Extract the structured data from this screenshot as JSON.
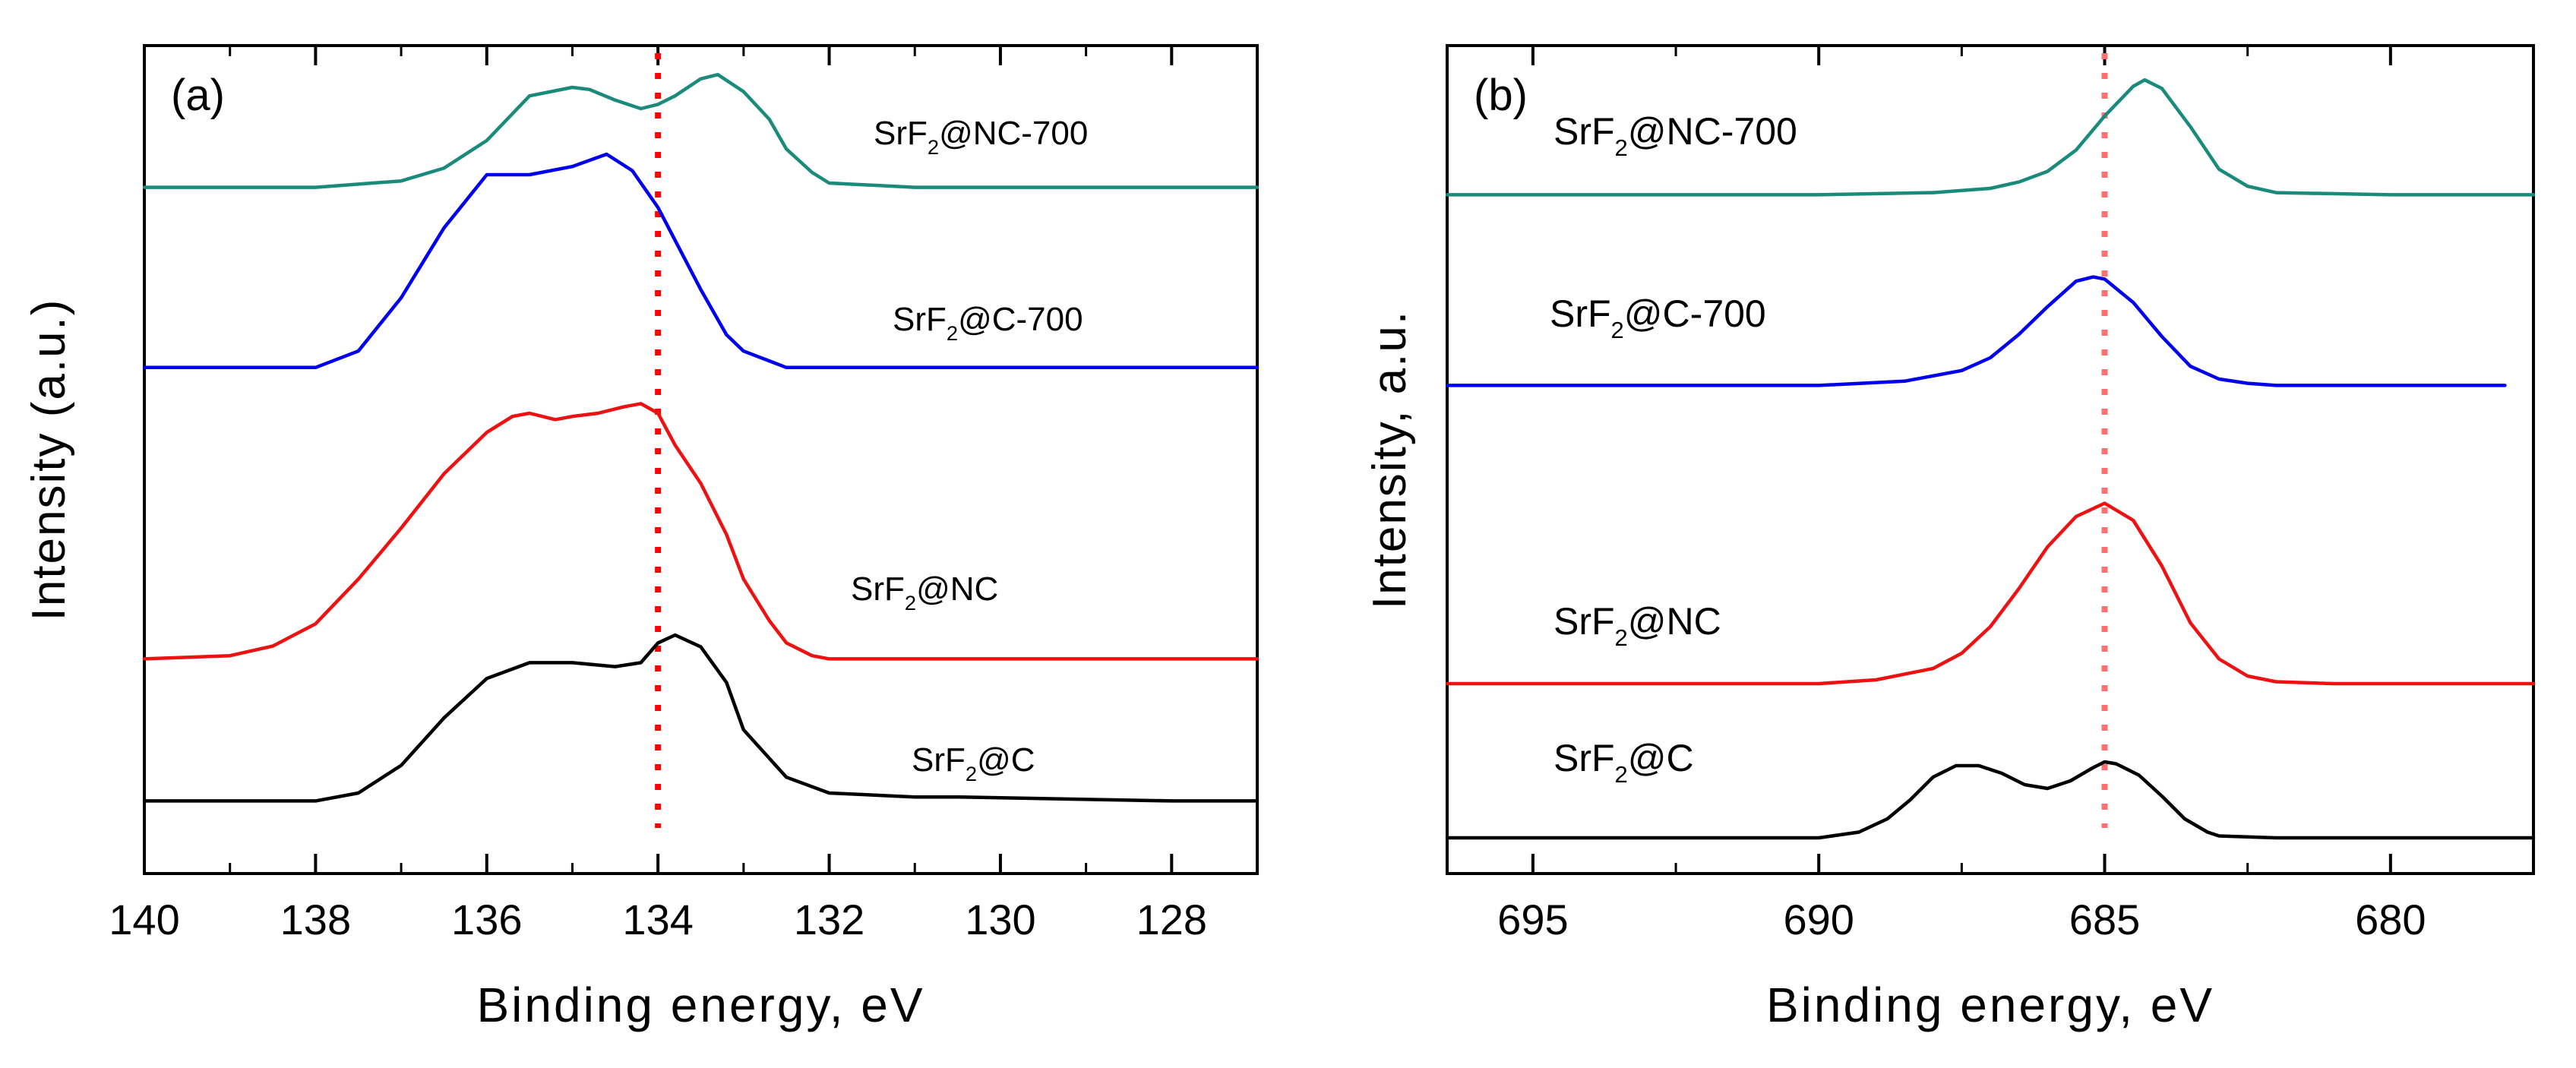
{
  "chart_data": [
    {
      "type": "line",
      "panel_label": "(a)",
      "xlabel": "Binding energy, eV",
      "ylabel": "Intensity (a.u.)",
      "xlim": [
        140,
        127
      ],
      "x_reversed": true,
      "xticks": [
        140,
        138,
        136,
        134,
        132,
        130,
        128
      ],
      "xtick_labels": [
        "140",
        "138",
        "136",
        "134",
        "132",
        "130",
        "128"
      ],
      "y_ticks_visible": false,
      "reference_line": {
        "x": 134.0,
        "style": "dotted",
        "color": "#ff0000"
      },
      "series": [
        {
          "name": "SrF2@NC-700",
          "label_main": "SrF",
          "label_sub": "2",
          "label_rest": "@NC-700",
          "color": "#1a8a7a",
          "x": [
            140,
            138,
            137,
            136.5,
            136,
            135.5,
            135,
            134.8,
            134.5,
            134.2,
            134,
            133.8,
            133.5,
            133.3,
            133,
            132.7,
            132.5,
            132.2,
            132,
            131,
            130,
            128,
            127
          ],
          "y": [
            0.3,
            0.3,
            0.6,
            1.2,
            2.5,
            4.6,
            5.0,
            4.9,
            4.4,
            4.0,
            4.2,
            4.6,
            5.4,
            5.6,
            4.8,
            3.5,
            2.1,
            1.0,
            0.5,
            0.3,
            0.3,
            0.3,
            0.3
          ]
        },
        {
          "name": "SrF2@C-700",
          "label_main": "SrF",
          "label_sub": "2",
          "label_rest": "@C-700",
          "color": "#0000ee",
          "x": [
            140,
            138,
            137.5,
            137,
            136.5,
            136,
            135.5,
            135,
            134.6,
            134.3,
            134,
            133.8,
            133.5,
            133.2,
            133,
            132.5,
            132,
            131,
            128,
            127
          ],
          "y": [
            0.3,
            0.3,
            0.7,
            2.0,
            3.7,
            5.0,
            5.0,
            5.2,
            5.5,
            5.1,
            4.2,
            3.4,
            2.2,
            1.1,
            0.7,
            0.3,
            0.3,
            0.3,
            0.3,
            0.3
          ]
        },
        {
          "name": "SrF2@NC",
          "label_main": "SrF",
          "label_sub": "2",
          "label_rest": "@NC",
          "color": "#ee1111",
          "x": [
            140,
            139,
            138.5,
            138,
            137.5,
            137,
            136.5,
            136,
            135.7,
            135.5,
            135.2,
            135,
            134.7,
            134.4,
            134.2,
            134,
            133.8,
            133.5,
            133.2,
            133,
            132.7,
            132.5,
            132.2,
            132,
            131,
            130,
            128,
            127
          ],
          "y": [
            0.3,
            0.4,
            0.7,
            1.4,
            2.8,
            4.4,
            6.1,
            7.4,
            7.9,
            8.0,
            7.8,
            7.9,
            8.0,
            8.2,
            8.3,
            8.0,
            7.0,
            5.8,
            4.2,
            2.8,
            1.5,
            0.8,
            0.4,
            0.3,
            0.3,
            0.3,
            0.3,
            0.3
          ]
        },
        {
          "name": "SrF2@C",
          "label_main": "SrF",
          "label_sub": "2",
          "label_rest": "@C",
          "color": "#000000",
          "x": [
            140,
            138,
            137.5,
            137,
            136.5,
            136,
            135.5,
            135,
            134.5,
            134.2,
            134,
            133.8,
            133.5,
            133.2,
            133,
            132.5,
            132,
            131,
            130.5,
            128,
            127
          ],
          "y": [
            0.3,
            0.3,
            0.5,
            1.2,
            2.4,
            3.4,
            3.8,
            3.8,
            3.7,
            3.8,
            4.3,
            4.5,
            4.2,
            3.3,
            2.1,
            0.9,
            0.5,
            0.4,
            0.4,
            0.3,
            0.3
          ]
        }
      ]
    },
    {
      "type": "line",
      "panel_label": "(b)",
      "xlabel": "Binding energy, eV",
      "ylabel": "Intensity, a.u.",
      "xlim": [
        696.5,
        677.5
      ],
      "x_reversed": true,
      "xticks": [
        695,
        690,
        685,
        680
      ],
      "xtick_labels": [
        "695",
        "690",
        "685",
        "680"
      ],
      "y_ticks_visible": false,
      "reference_line": {
        "x": 685.0,
        "style": "dotted",
        "color": "#ff7070"
      },
      "series": [
        {
          "name": "SrF2@NC-700",
          "label_main": "SrF",
          "label_sub": "2",
          "label_rest": "@NC-700",
          "color": "#1a8a7a",
          "x": [
            696.5,
            690,
            688,
            687,
            686.5,
            686,
            685.5,
            685,
            684.5,
            684.3,
            684,
            683.5,
            683,
            682.5,
            682,
            680,
            677.5
          ],
          "y": [
            0.2,
            0.2,
            0.3,
            0.5,
            0.8,
            1.3,
            2.3,
            3.9,
            5.3,
            5.6,
            5.2,
            3.4,
            1.4,
            0.6,
            0.3,
            0.2,
            0.2
          ]
        },
        {
          "name": "SrF2@C-700",
          "label_main": "SrF",
          "label_sub": "2",
          "label_rest": "@C-700",
          "color": "#0000ee",
          "x": [
            696.5,
            690,
            688.5,
            687.5,
            687,
            686.5,
            686,
            685.5,
            685.2,
            685,
            684.5,
            684,
            683.5,
            683,
            682.5,
            682,
            678
          ],
          "y": [
            0.2,
            0.2,
            0.4,
            0.9,
            1.5,
            2.6,
            3.9,
            5.1,
            5.3,
            5.2,
            4.1,
            2.5,
            1.1,
            0.5,
            0.3,
            0.2,
            0.2
          ]
        },
        {
          "name": "SrF2@NC",
          "label_main": "SrF",
          "label_sub": "2",
          "label_rest": "@NC",
          "color": "#ee1111",
          "x": [
            696.5,
            690,
            689,
            688,
            687.5,
            687,
            686.5,
            686,
            685.5,
            685,
            684.5,
            684,
            683.5,
            683,
            682.5,
            682,
            681,
            677.5
          ],
          "y": [
            0.2,
            0.2,
            0.4,
            1.0,
            1.8,
            3.2,
            5.2,
            7.4,
            9.0,
            9.7,
            8.8,
            6.4,
            3.4,
            1.5,
            0.6,
            0.3,
            0.2,
            0.2
          ]
        },
        {
          "name": "SrF2@C",
          "label_main": "SrF",
          "label_sub": "2",
          "label_rest": "@C",
          "color": "#000000",
          "x": [
            696.5,
            690,
            689.3,
            688.8,
            688.4,
            688,
            687.6,
            687.2,
            686.8,
            686.4,
            686,
            685.6,
            685.2,
            685,
            684.8,
            684.4,
            684,
            683.6,
            683.2,
            683,
            682,
            677.5
          ],
          "y": [
            0.2,
            0.2,
            0.5,
            1.2,
            2.2,
            3.4,
            4.0,
            4.0,
            3.6,
            3.0,
            2.8,
            3.2,
            3.9,
            4.2,
            4.1,
            3.5,
            2.4,
            1.2,
            0.5,
            0.3,
            0.2,
            0.2
          ]
        }
      ]
    }
  ]
}
